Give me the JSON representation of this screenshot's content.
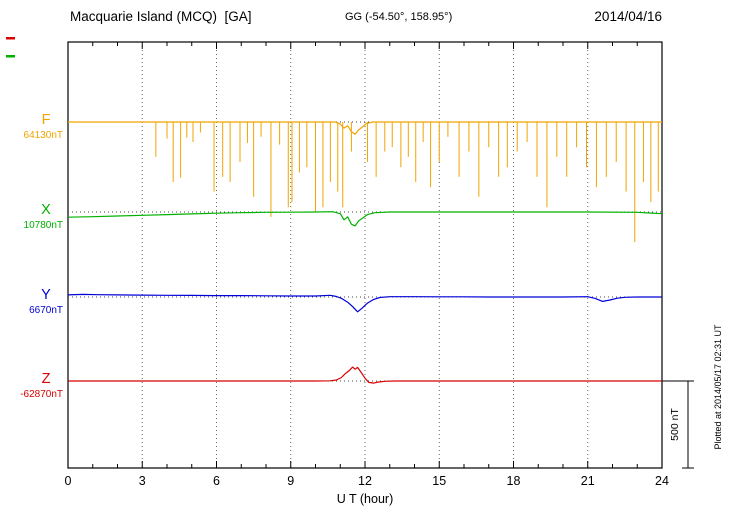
{
  "header": {
    "station_title": "Macquarie Island (MCQ)  [GA]",
    "coords": "GG (-54.50°, 158.95°)",
    "date": "2014/04/16"
  },
  "side": {
    "scale_label": "500 nT",
    "plotted_at": "Plotted at 2014/05/17 02:31 UT",
    "markers": [
      {
        "name": "red-overflow-marker",
        "color": "#d80000"
      },
      {
        "name": "green-overflow-marker",
        "color": "#00b200"
      }
    ]
  },
  "chart_data": {
    "type": "line",
    "title": "Macquarie Island (MCQ) [GA] magnetogram 2014/04/16",
    "xlabel": "U T (hour)",
    "xlim": [
      0,
      24
    ],
    "x_ticks": [
      0,
      3,
      6,
      9,
      12,
      15,
      18,
      21,
      24
    ],
    "grid": "vertical-dotted",
    "scale_bar_nT": 500,
    "legend_position": "left",
    "series": [
      {
        "name": "F",
        "color": "#f0a400",
        "baseline_label": "64130nT",
        "baseline_nT": 64130,
        "points": [
          [
            0,
            0
          ],
          [
            2,
            0
          ],
          [
            4,
            0
          ],
          [
            6,
            0
          ],
          [
            8,
            0
          ],
          [
            10,
            0
          ],
          [
            10.8,
            0
          ],
          [
            11.0,
            -12
          ],
          [
            11.15,
            -35
          ],
          [
            11.3,
            -22
          ],
          [
            11.45,
            -55
          ],
          [
            11.6,
            -70
          ],
          [
            11.75,
            -45
          ],
          [
            11.9,
            -28
          ],
          [
            12.05,
            -10
          ],
          [
            12.3,
            0
          ],
          [
            14,
            0
          ],
          [
            16,
            0
          ],
          [
            18,
            0
          ],
          [
            20,
            0
          ],
          [
            22,
            0
          ],
          [
            24,
            0
          ]
        ],
        "spikes": [
          [
            3.55,
            200
          ],
          [
            4.0,
            95
          ],
          [
            4.25,
            345
          ],
          [
            4.55,
            320
          ],
          [
            4.8,
            90
          ],
          [
            5.05,
            115
          ],
          [
            5.35,
            60
          ],
          [
            5.9,
            400
          ],
          [
            6.25,
            315
          ],
          [
            6.55,
            345
          ],
          [
            6.95,
            230
          ],
          [
            7.25,
            120
          ],
          [
            7.5,
            430
          ],
          [
            7.8,
            85
          ],
          [
            8.2,
            545
          ],
          [
            8.55,
            130
          ],
          [
            8.9,
            490
          ],
          [
            9.05,
            460
          ],
          [
            9.35,
            290
          ],
          [
            9.65,
            260
          ],
          [
            10.0,
            515
          ],
          [
            10.3,
            490
          ],
          [
            10.6,
            345
          ],
          [
            10.9,
            400
          ],
          [
            11.1,
            490
          ],
          [
            11.45,
            170
          ],
          [
            12.1,
            230
          ],
          [
            12.45,
            315
          ],
          [
            12.8,
            170
          ],
          [
            13.1,
            145
          ],
          [
            13.45,
            260
          ],
          [
            13.75,
            200
          ],
          [
            14.05,
            345
          ],
          [
            14.35,
            115
          ],
          [
            14.65,
            375
          ],
          [
            15.0,
            230
          ],
          [
            15.35,
            85
          ],
          [
            15.8,
            315
          ],
          [
            16.2,
            170
          ],
          [
            16.6,
            430
          ],
          [
            17.0,
            145
          ],
          [
            17.4,
            315
          ],
          [
            17.75,
            260
          ],
          [
            18.15,
            170
          ],
          [
            18.55,
            115
          ],
          [
            18.95,
            315
          ],
          [
            19.35,
            490
          ],
          [
            19.75,
            200
          ],
          [
            20.15,
            315
          ],
          [
            20.55,
            145
          ],
          [
            20.95,
            260
          ],
          [
            21.35,
            375
          ],
          [
            21.75,
            315
          ],
          [
            22.15,
            230
          ],
          [
            22.55,
            400
          ],
          [
            22.9,
            690
          ],
          [
            23.25,
            345
          ],
          [
            23.55,
            460
          ],
          [
            23.85,
            400
          ]
        ]
      },
      {
        "name": "X",
        "color": "#00b200",
        "baseline_label": "10780nT",
        "baseline_nT": 10780,
        "points": [
          [
            0,
            -30
          ],
          [
            1,
            -27
          ],
          [
            2,
            -23
          ],
          [
            3,
            -19
          ],
          [
            4,
            -15
          ],
          [
            5,
            -11
          ],
          [
            6,
            -7
          ],
          [
            7,
            -4
          ],
          [
            8,
            -2
          ],
          [
            9,
            -1
          ],
          [
            10,
            0
          ],
          [
            10.7,
            2
          ],
          [
            11.0,
            -10
          ],
          [
            11.15,
            -45
          ],
          [
            11.3,
            -28
          ],
          [
            11.45,
            -70
          ],
          [
            11.6,
            -80
          ],
          [
            11.75,
            -50
          ],
          [
            11.9,
            -35
          ],
          [
            12.1,
            -15
          ],
          [
            12.4,
            -4
          ],
          [
            13,
            0
          ],
          [
            15,
            0
          ],
          [
            17,
            0
          ],
          [
            19,
            0
          ],
          [
            21,
            0
          ],
          [
            23,
            -2
          ],
          [
            23.5,
            -6
          ],
          [
            24,
            -10
          ]
        ]
      },
      {
        "name": "Y",
        "color": "#0000d8",
        "baseline_label": "6670nT",
        "baseline_nT": 6670,
        "points": [
          [
            0,
            12
          ],
          [
            0.6,
            15
          ],
          [
            1.2,
            13
          ],
          [
            2,
            12
          ],
          [
            3,
            11
          ],
          [
            4,
            10
          ],
          [
            5,
            9
          ],
          [
            6,
            8
          ],
          [
            7,
            8
          ],
          [
            8,
            7
          ],
          [
            9,
            6
          ],
          [
            10,
            6
          ],
          [
            10.6,
            10
          ],
          [
            10.85,
            3
          ],
          [
            11.05,
            -8
          ],
          [
            11.3,
            -30
          ],
          [
            11.5,
            -55
          ],
          [
            11.7,
            -85
          ],
          [
            11.9,
            -62
          ],
          [
            12.1,
            -35
          ],
          [
            12.35,
            -14
          ],
          [
            12.6,
            -3
          ],
          [
            13,
            2
          ],
          [
            14,
            2
          ],
          [
            15,
            1
          ],
          [
            16,
            1
          ],
          [
            17,
            0
          ],
          [
            18,
            0
          ],
          [
            19,
            0
          ],
          [
            20,
            0
          ],
          [
            21,
            2
          ],
          [
            21.3,
            -8
          ],
          [
            21.6,
            -25
          ],
          [
            21.9,
            -17
          ],
          [
            22.2,
            -7
          ],
          [
            22.5,
            -2
          ],
          [
            23,
            0
          ],
          [
            24,
            0
          ]
        ]
      },
      {
        "name": "Z",
        "color": "#d80000",
        "baseline_label": "-62870nT",
        "baseline_nT": -62870,
        "points": [
          [
            0,
            0
          ],
          [
            2,
            0
          ],
          [
            4,
            0
          ],
          [
            6,
            0
          ],
          [
            8,
            0
          ],
          [
            10,
            0
          ],
          [
            10.6,
            1
          ],
          [
            10.85,
            6
          ],
          [
            11.05,
            20
          ],
          [
            11.2,
            42
          ],
          [
            11.35,
            58
          ],
          [
            11.5,
            80
          ],
          [
            11.6,
            68
          ],
          [
            11.7,
            78
          ],
          [
            11.85,
            48
          ],
          [
            12.0,
            16
          ],
          [
            12.15,
            -8
          ],
          [
            12.35,
            -12
          ],
          [
            12.55,
            -6
          ],
          [
            12.8,
            -2
          ],
          [
            13.2,
            0
          ],
          [
            16,
            0
          ],
          [
            20,
            0
          ],
          [
            24,
            0
          ]
        ]
      }
    ]
  }
}
